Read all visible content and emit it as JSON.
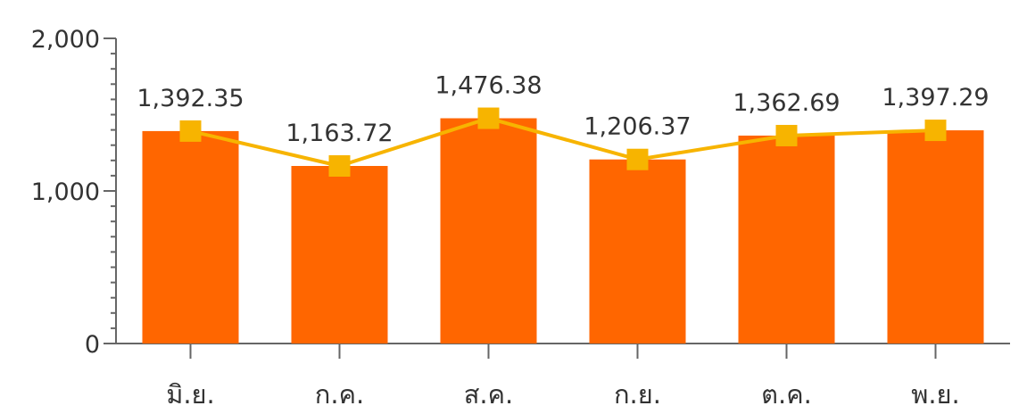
{
  "chart_data": {
    "type": "bar",
    "categories": [
      "มิ.ย.",
      "ก.ค.",
      "ส.ค.",
      "ก.ย.",
      "ต.ค.",
      "พ.ย."
    ],
    "values": [
      1392.35,
      1163.72,
      1476.38,
      1206.37,
      1362.69,
      1397.29
    ],
    "value_labels": [
      "1,392.35",
      "1,163.72",
      "1,476.38",
      "1,206.37",
      "1,362.69",
      "1,397.29"
    ],
    "overlay": "line",
    "ylim": [
      0,
      2000
    ],
    "y_ticks": [
      0,
      1000,
      2000
    ],
    "y_tick_labels": [
      "0",
      "1,000",
      "2,000"
    ],
    "grid": false,
    "bar_color": "#ff6600",
    "line_color": "#f7b400"
  }
}
